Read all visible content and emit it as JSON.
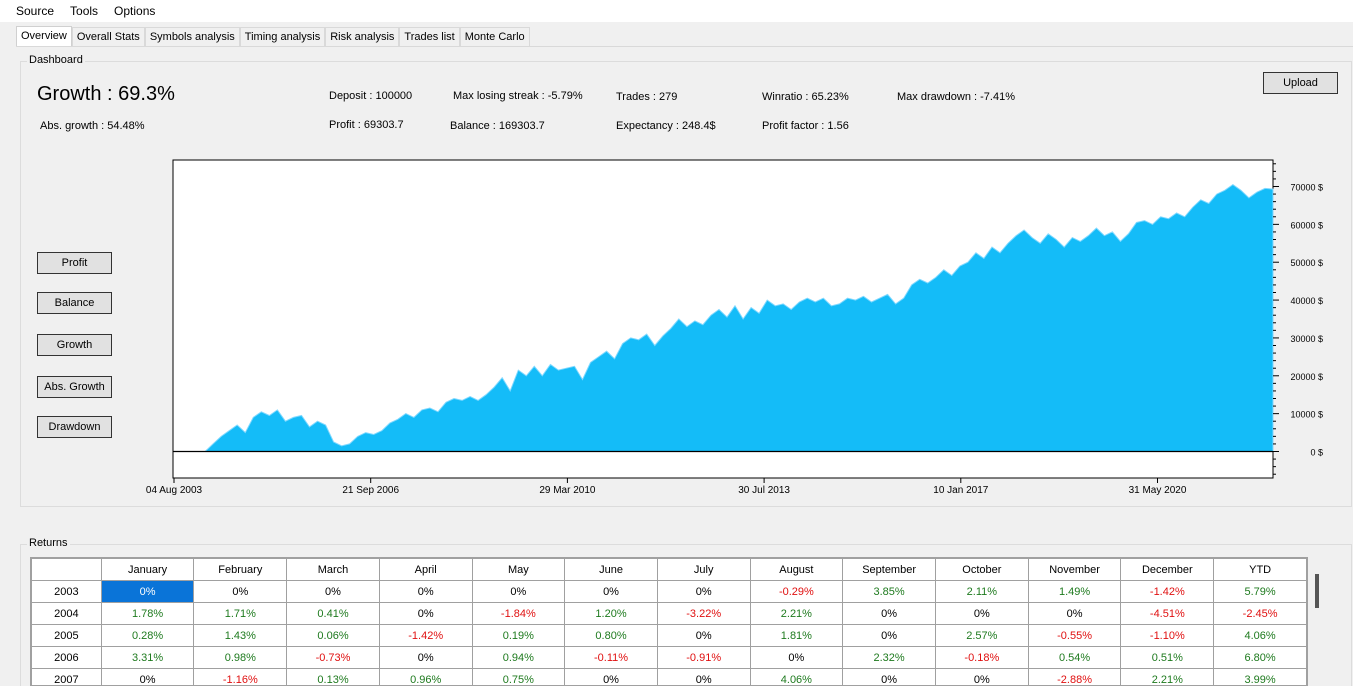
{
  "menu": [
    "Source",
    "Tools",
    "Options"
  ],
  "tabs": [
    "Overview",
    "Overall Stats",
    "Symbols analysis",
    "Timing analysis",
    "Risk analysis",
    "Trades list",
    "Monte Carlo"
  ],
  "dashboard": {
    "title": "Dashboard",
    "growth_label": "Growth :",
    "growth_value": "69.3%",
    "abs_growth": "Abs. growth :   54.48%",
    "deposit": "Deposit :  100000",
    "profit": "Profit :   69303.7",
    "max_losing_streak": "Max losing streak :  -5.79%",
    "balance": "Balance :   169303.7",
    "trades": "Trades :   279",
    "expectancy": "Expectancy :   248.4$",
    "winratio": "Winratio :   65.23%",
    "profit_factor": "Profit factor :  1.56",
    "max_drawdown": "Max drawdown :   -7.41%",
    "upload_label": "Upload",
    "buttons": [
      "Profit",
      "Balance",
      "Growth",
      "Abs. Growth",
      "Drawdown"
    ]
  },
  "chart_data": {
    "type": "area",
    "xlabel": "",
    "ylabel": "",
    "x_tick_labels": [
      "04 Aug 2003",
      "21 Sep 2006",
      "29 Mar 2010",
      "30 Jul 2013",
      "10 Jan 2017",
      "31 May 2020"
    ],
    "y_tick_labels": [
      "0 $",
      "10000 $",
      "20000 $",
      "30000 $",
      "40000 $",
      "50000 $",
      "60000 $",
      "70000 $"
    ],
    "ylim": [
      -7000,
      77000
    ],
    "fill_color": "#14bcf8",
    "series": [
      {
        "values": [
          0,
          0,
          0,
          0,
          0,
          2000,
          4000,
          5500,
          7000,
          5000,
          9000,
          10500,
          9500,
          11000,
          8000,
          9000,
          9500,
          6500,
          8000,
          7000,
          2500,
          1500,
          2000,
          4000,
          5000,
          4500,
          5500,
          7500,
          8500,
          10000,
          9000,
          11000,
          11500,
          10500,
          13000,
          14000,
          13500,
          14500,
          13500,
          15000,
          17000,
          19500,
          16000,
          21500,
          20000,
          22500,
          20000,
          23000,
          21500,
          22000,
          22500,
          19000,
          23500,
          25000,
          26500,
          24500,
          28500,
          30000,
          29500,
          31000,
          28000,
          30500,
          32500,
          35000,
          33000,
          34500,
          33500,
          36000,
          37500,
          35500,
          38500,
          35000,
          38000,
          36500,
          40000,
          38500,
          39000,
          37500,
          39500,
          40500,
          39500,
          40500,
          38500,
          39000,
          40500,
          40000,
          41000,
          39500,
          40500,
          41500,
          39000,
          40500,
          44000,
          45500,
          44500,
          46000,
          48000,
          46500,
          49000,
          50000,
          52500,
          51000,
          54000,
          52500,
          55000,
          57000,
          58500,
          56500,
          55000,
          57500,
          56000,
          54000,
          56500,
          55500,
          57000,
          59000,
          57000,
          58000,
          55500,
          57500,
          60500,
          61000,
          60000,
          62000,
          61500,
          63000,
          62000,
          64500,
          66500,
          65500,
          68000,
          69000,
          70500,
          69000,
          67000,
          68500,
          69500,
          69303.7
        ]
      }
    ]
  },
  "returns": {
    "title": "Returns",
    "columns": [
      "",
      "January",
      "February",
      "March",
      "April",
      "May",
      "June",
      "July",
      "August",
      "September",
      "October",
      "November",
      "December",
      "YTD"
    ],
    "rows": [
      {
        "year": "2003",
        "values": [
          "0%",
          "0%",
          "0%",
          "0%",
          "0%",
          "0%",
          "0%",
          "-0.29%",
          "3.85%",
          "2.11%",
          "1.49%",
          "-1.42%",
          "5.79%"
        ]
      },
      {
        "year": "2004",
        "values": [
          "1.78%",
          "1.71%",
          "0.41%",
          "0%",
          "-1.84%",
          "1.20%",
          "-3.22%",
          "2.21%",
          "0%",
          "0%",
          "0%",
          "-4.51%",
          "-2.45%"
        ]
      },
      {
        "year": "2005",
        "values": [
          "0.28%",
          "1.43%",
          "0.06%",
          "-1.42%",
          "0.19%",
          "0.80%",
          "0%",
          "1.81%",
          "0%",
          "2.57%",
          "-0.55%",
          "-1.10%",
          "4.06%"
        ]
      },
      {
        "year": "2006",
        "values": [
          "3.31%",
          "0.98%",
          "-0.73%",
          "0%",
          "0.94%",
          "-0.11%",
          "-0.91%",
          "0%",
          "2.32%",
          "-0.18%",
          "0.54%",
          "0.51%",
          "6.80%"
        ]
      },
      {
        "year": "2007",
        "values": [
          "0%",
          "-1.16%",
          "0.13%",
          "0.96%",
          "0.75%",
          "0%",
          "0%",
          "4.06%",
          "0%",
          "0%",
          "-2.88%",
          "2.21%",
          "3.99%"
        ]
      }
    ]
  }
}
